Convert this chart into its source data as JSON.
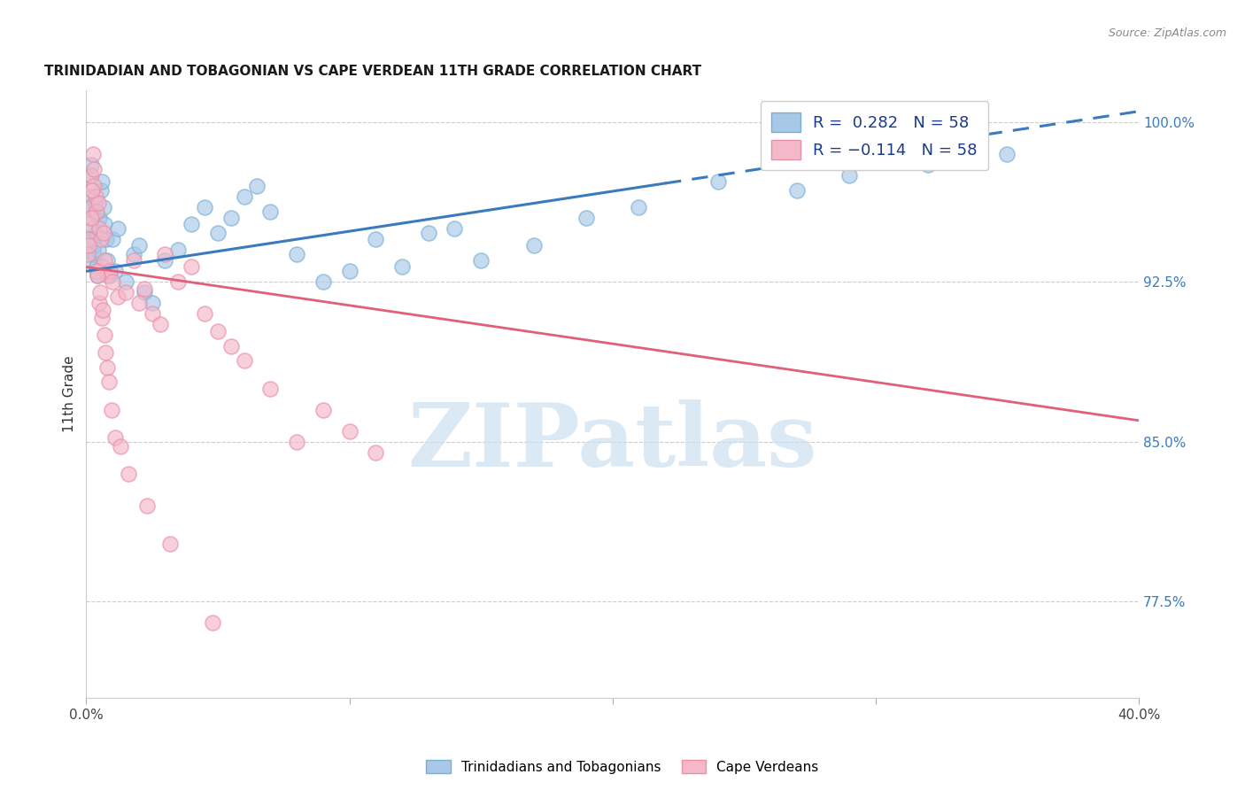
{
  "title": "TRINIDADIAN AND TOBAGONIAN VS CAPE VERDEAN 11TH GRADE CORRELATION CHART",
  "source": "Source: ZipAtlas.com",
  "ylabel": "11th Grade",
  "right_yticks": [
    77.5,
    85.0,
    92.5,
    100.0
  ],
  "right_ytick_labels": [
    "77.5%",
    "85.0%",
    "92.5%",
    "100.0%"
  ],
  "R_blue": 0.282,
  "R_pink": -0.114,
  "N": 58,
  "blue_color": "#a8c8e8",
  "blue_edge_color": "#7aafd4",
  "pink_color": "#f4b8c8",
  "pink_edge_color": "#e890a8",
  "blue_line_color": "#3a7bbf",
  "pink_line_color": "#e0607a",
  "blue_scatter_x": [
    0.05,
    0.08,
    0.1,
    0.12,
    0.15,
    0.18,
    0.2,
    0.22,
    0.25,
    0.28,
    0.3,
    0.32,
    0.35,
    0.38,
    0.4,
    0.42,
    0.45,
    0.5,
    0.55,
    0.6,
    0.65,
    0.7,
    0.75,
    0.8,
    0.9,
    1.0,
    1.1,
    1.2,
    1.5,
    1.8,
    2.0,
    2.2,
    2.5,
    3.0,
    3.5,
    4.0,
    4.5,
    5.0,
    5.5,
    6.0,
    6.5,
    7.0,
    8.0,
    9.0,
    10.0,
    11.0,
    12.0,
    13.0,
    14.0,
    15.0,
    17.0,
    19.0,
    21.0,
    24.0,
    27.0,
    29.0,
    32.0,
    35.0
  ],
  "blue_scatter_y": [
    93.5,
    94.0,
    96.0,
    95.5,
    97.5,
    98.0,
    96.5,
    95.0,
    94.5,
    93.8,
    94.2,
    95.8,
    96.2,
    94.8,
    93.2,
    92.8,
    94.0,
    95.5,
    96.8,
    97.2,
    96.0,
    95.2,
    94.5,
    93.5,
    92.8,
    94.5,
    93.0,
    95.0,
    92.5,
    93.8,
    94.2,
    92.0,
    91.5,
    93.5,
    94.0,
    95.2,
    96.0,
    94.8,
    95.5,
    96.5,
    97.0,
    95.8,
    93.8,
    92.5,
    93.0,
    94.5,
    93.2,
    94.8,
    95.0,
    93.5,
    94.2,
    95.5,
    96.0,
    97.2,
    96.8,
    97.5,
    98.0,
    98.5
  ],
  "pink_scatter_x": [
    0.05,
    0.08,
    0.12,
    0.15,
    0.2,
    0.25,
    0.3,
    0.35,
    0.4,
    0.45,
    0.5,
    0.55,
    0.6,
    0.65,
    0.7,
    0.8,
    0.9,
    1.0,
    1.2,
    1.5,
    1.8,
    2.0,
    2.2,
    2.5,
    2.8,
    3.0,
    3.5,
    4.0,
    4.5,
    5.0,
    5.5,
    6.0,
    7.0,
    8.0,
    9.0,
    10.0,
    11.0,
    0.1,
    0.18,
    0.22,
    0.28,
    0.38,
    0.42,
    0.48,
    0.52,
    0.58,
    0.62,
    0.68,
    0.72,
    0.78,
    0.85,
    0.95,
    1.1,
    1.3,
    1.6,
    2.3,
    3.2,
    4.8
  ],
  "pink_scatter_y": [
    93.8,
    94.5,
    95.2,
    96.0,
    97.5,
    98.5,
    97.0,
    96.5,
    95.8,
    96.2,
    95.0,
    94.5,
    93.2,
    94.8,
    93.5,
    92.8,
    93.0,
    92.5,
    91.8,
    92.0,
    93.5,
    91.5,
    92.2,
    91.0,
    90.5,
    93.8,
    92.5,
    93.2,
    91.0,
    90.2,
    89.5,
    88.8,
    87.5,
    85.0,
    86.5,
    85.5,
    84.5,
    94.2,
    95.5,
    96.8,
    97.8,
    93.0,
    92.8,
    91.5,
    92.0,
    90.8,
    91.2,
    90.0,
    89.2,
    88.5,
    87.8,
    86.5,
    85.2,
    84.8,
    83.5,
    82.0,
    80.2,
    76.5
  ],
  "blue_trend_x0": 0,
  "blue_trend_y0": 93.0,
  "blue_trend_x1": 40,
  "blue_trend_y1": 100.5,
  "pink_trend_x0": 0,
  "pink_trend_y0": 93.2,
  "pink_trend_x1": 40,
  "pink_trend_y1": 86.0,
  "xlim": [
    0,
    40
  ],
  "ylim": [
    73.0,
    101.5
  ],
  "background_color": "#ffffff",
  "grid_color": "#cccccc",
  "watermark_text": "ZIPatlas",
  "watermark_color": "#cce0f0",
  "legend_text_color": "#1a3a8a",
  "right_ytick_color": "#3a7bbf",
  "legend_box_edge": "#cccccc"
}
